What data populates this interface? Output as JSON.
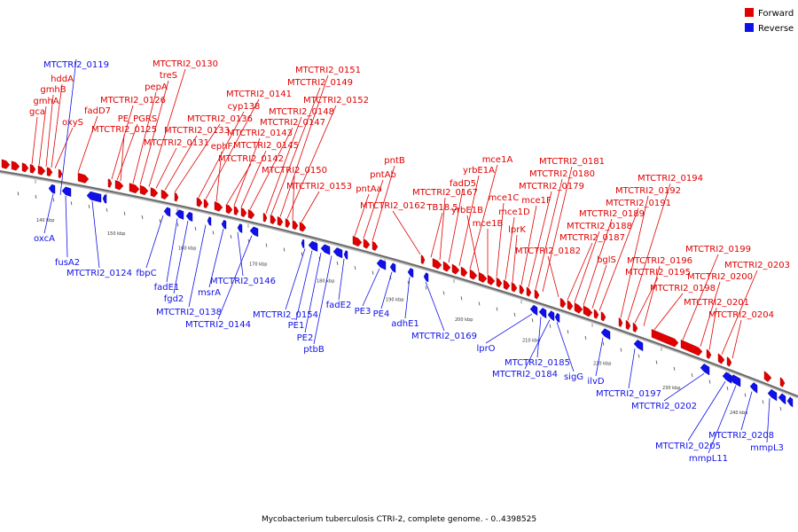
{
  "legend": [
    {
      "label": "Forward",
      "color": "#e00000"
    },
    {
      "label": "Reverse",
      "color": "#1010e8"
    }
  ],
  "caption": "Mycobacterium tuberculosis CTRI-2, complete genome. - 0..4398525",
  "colors": {
    "forward": "#e00000",
    "reverse": "#1010e8",
    "backbone": "#888888"
  },
  "ticks": [
    "140 kbp",
    "150 kbp",
    "160 kbp",
    "170 kbp",
    "180 kbp",
    "190 kbp",
    "200 kbp",
    "210 kbp",
    "220 kbp",
    "230 kbp",
    "240 kbp"
  ],
  "forward_labels": [
    "gca",
    "gmhA",
    "gmhB",
    "hddA",
    "oxyS",
    "fadD7",
    "MTCTRI2_0126",
    "PE_PGRS",
    "MTCTRI2_0125",
    "pepA",
    "treS",
    "MTCTRI2_0130",
    "MTCTRI2_0131",
    "MTCTRI2_0133",
    "MTCTRI2_0136",
    "cyp138",
    "MTCTRI2_0141",
    "ephF",
    "MTCTRI2_0142",
    "MTCTRI2_0143",
    "MTCTRI2_0145",
    "MTCTRI2_0147",
    "MTCTRI2_0148",
    "MTCTRI2_0149",
    "MTCTRI2_0151",
    "MTCTRI2_0152",
    "MTCTRI2_0150",
    "MTCTRI2_0153",
    "pntAa",
    "pntAb",
    "pntB",
    "MTCTRI2_0162",
    "TB18.5",
    "MTCTRI2_0167",
    "fadD5",
    "yrbE1A",
    "mce1A",
    "yrbE1B",
    "mce1B",
    "mce1C",
    "mce1D",
    "lprK",
    "mce1F",
    "MTCTRI2_0179",
    "MTCTRI2_0180",
    "MTCTRI2_0181",
    "MTCTRI2_0182",
    "MTCTRI2_0187",
    "MTCTRI2_0188",
    "MTCTRI2_0189",
    "bglS",
    "MTCTRI2_0191",
    "MTCTRI2_0192",
    "MTCTRI2_0194",
    "MTCTRI2_0195",
    "MTCTRI2_0196",
    "MTCTRI2_0198",
    "MTCTRI2_0199",
    "MTCTRI2_0200",
    "MTCTRI2_0201",
    "MTCTRI2_0203",
    "MTCTRI2_0204"
  ],
  "reverse_labels": [
    "MTCTRI2_0119",
    "oxcA",
    "fusA2",
    "MTCTRI2_0124",
    "fbpC",
    "fadE1",
    "fgd2",
    "MTCTRI2_0138",
    "msrA",
    "MTCTRI2_0146",
    "MTCTRI2_0144",
    "MTCTRI2_0154",
    "PE1",
    "PE2",
    "ptbB",
    "fadE2",
    "PE3",
    "PE4",
    "adhE1",
    "MTCTRI2_0169",
    "lprO",
    "MTCTRI2_0185",
    "MTCTRI2_0184",
    "sigG",
    "ilvD",
    "MTCTRI2_0197",
    "MTCTRI2_0202",
    "MTCTRI2_0205",
    "mmpL11",
    "MTCTRI2_0208",
    "mmpL3"
  ]
}
